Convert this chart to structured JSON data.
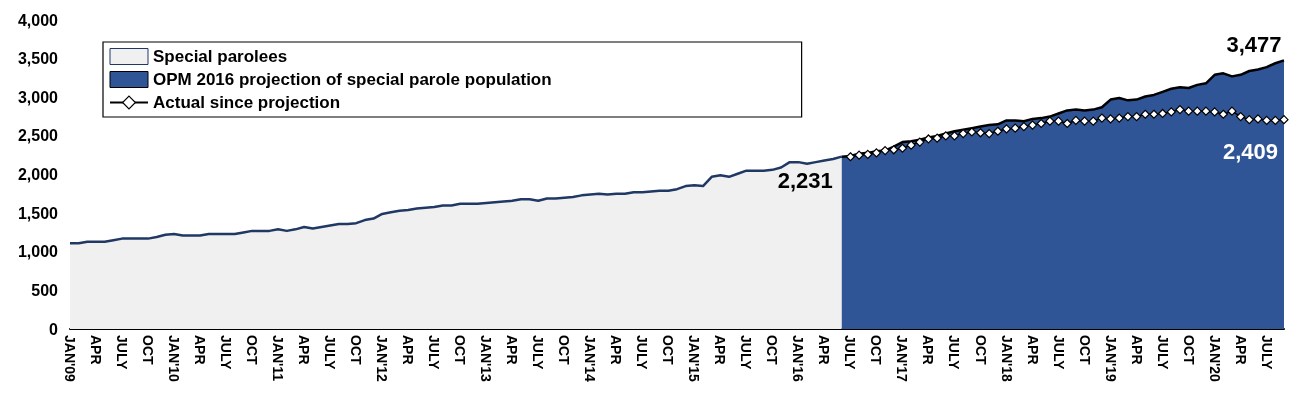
{
  "chart_data": {
    "type": "area",
    "categories": [
      "JAN'09",
      null,
      null,
      "APR",
      null,
      null,
      "JULY",
      null,
      null,
      "OCT",
      null,
      null,
      "JAN'10",
      null,
      null,
      "APR",
      null,
      null,
      "JULY",
      null,
      null,
      "OCT",
      null,
      null,
      "JAN'11",
      null,
      null,
      "APR",
      null,
      null,
      "JULY",
      null,
      null,
      "OCT",
      null,
      null,
      "JAN'12",
      null,
      null,
      "APR",
      null,
      null,
      "JULY",
      null,
      null,
      "OCT",
      null,
      null,
      "JAN'13",
      null,
      null,
      "APR",
      null,
      null,
      "JULY",
      null,
      null,
      "OCT",
      null,
      null,
      "JAN'14",
      null,
      null,
      "APR",
      null,
      null,
      "JULY",
      null,
      null,
      "OCT",
      null,
      null,
      "JAN'15",
      null,
      null,
      "APR",
      null,
      null,
      "JULY",
      null,
      null,
      "OCT",
      null,
      null,
      "JAN'16",
      null,
      null,
      "APR",
      null,
      null,
      "JULY",
      null,
      null,
      "OCT",
      null,
      null,
      "JAN'17",
      null,
      null,
      "APR",
      null,
      null,
      "JULY",
      null,
      null,
      "OCT",
      null,
      null,
      "JAN'18",
      null,
      null,
      "APR",
      null,
      null,
      "JULY",
      null,
      null,
      "OCT",
      null,
      null,
      "JAN'19",
      null,
      null,
      "APR",
      null,
      null,
      "JULY",
      null,
      null,
      "OCT",
      null,
      null,
      "JAN'20",
      null,
      null,
      "APR",
      null,
      null,
      "JULY",
      null,
      null
    ],
    "series": [
      {
        "name": "Special parolees",
        "type": "area",
        "color": "#f0f0f0",
        "values": [
          1110,
          1110,
          1130,
          1130,
          1130,
          1150,
          1170,
          1170,
          1170,
          1170,
          1190,
          1220,
          1230,
          1210,
          1210,
          1210,
          1230,
          1230,
          1230,
          1230,
          1250,
          1270,
          1270,
          1270,
          1290,
          1270,
          1290,
          1320,
          1300,
          1320,
          1340,
          1360,
          1360,
          1370,
          1410,
          1430,
          1490,
          1510,
          1530,
          1540,
          1560,
          1570,
          1580,
          1600,
          1600,
          1620,
          1620,
          1620,
          1630,
          1640,
          1650,
          1660,
          1680,
          1680,
          1660,
          1690,
          1690,
          1700,
          1710,
          1730,
          1740,
          1750,
          1740,
          1750,
          1750,
          1770,
          1770,
          1780,
          1790,
          1790,
          1810,
          1850,
          1860,
          1850,
          1970,
          1990,
          1970,
          2010,
          2050,
          2050,
          2050,
          2060,
          2090,
          2160,
          2160,
          2140,
          2160,
          2180,
          2200,
          2231,
          null,
          null,
          null,
          null,
          null,
          null,
          null,
          null,
          null,
          null,
          null,
          null,
          null,
          null,
          null,
          null,
          null,
          null,
          null,
          null,
          null,
          null,
          null,
          null,
          null,
          null,
          null,
          null,
          null,
          null,
          null,
          null,
          null,
          null,
          null,
          null,
          null,
          null,
          null,
          null,
          null,
          null,
          null,
          null,
          null,
          null,
          null,
          null,
          null,
          null,
          null
        ],
        "value_labels": [
          null,
          null,
          null,
          null,
          null,
          null,
          null,
          null,
          null,
          null,
          null,
          null,
          null,
          null,
          null,
          null,
          null,
          null,
          null,
          null,
          null,
          null,
          null,
          null,
          null,
          null,
          null,
          null,
          null,
          null,
          null,
          null,
          null,
          null,
          null,
          null,
          null,
          null,
          null,
          null,
          null,
          null,
          null,
          null,
          null,
          null,
          null,
          null,
          null,
          null,
          null,
          null,
          null,
          null,
          null,
          null,
          null,
          null,
          null,
          null,
          null,
          null,
          null,
          null,
          null,
          null,
          null,
          null,
          null,
          null,
          null,
          null,
          null,
          null,
          null,
          null,
          null,
          null,
          null,
          null,
          null,
          null,
          null,
          null,
          null,
          null,
          null,
          null,
          null,
          "2,231",
          null,
          null,
          null,
          null,
          null,
          null,
          null,
          null,
          null,
          null,
          null,
          null,
          null,
          null,
          null,
          null,
          null,
          null,
          null,
          null,
          null,
          null,
          null,
          null,
          null,
          null,
          null,
          null,
          null,
          null,
          null,
          null,
          null,
          null,
          null,
          null,
          null,
          null,
          null,
          null,
          null,
          null,
          null,
          null,
          null,
          null,
          null,
          null,
          null,
          null,
          null
        ]
      },
      {
        "name": "OPM 2016 projection of special parole population",
        "type": "area",
        "color": "#2f5597",
        "values": [
          null,
          null,
          null,
          null,
          null,
          null,
          null,
          null,
          null,
          null,
          null,
          null,
          null,
          null,
          null,
          null,
          null,
          null,
          null,
          null,
          null,
          null,
          null,
          null,
          null,
          null,
          null,
          null,
          null,
          null,
          null,
          null,
          null,
          null,
          null,
          null,
          null,
          null,
          null,
          null,
          null,
          null,
          null,
          null,
          null,
          null,
          null,
          null,
          null,
          null,
          null,
          null,
          null,
          null,
          null,
          null,
          null,
          null,
          null,
          null,
          null,
          null,
          null,
          null,
          null,
          null,
          null,
          null,
          null,
          null,
          null,
          null,
          null,
          null,
          null,
          null,
          null,
          null,
          null,
          null,
          null,
          null,
          null,
          null,
          null,
          null,
          null,
          null,
          null,
          2231,
          2240,
          2270,
          2280,
          2300,
          2310,
          2360,
          2420,
          2430,
          2450,
          2480,
          2500,
          2530,
          2560,
          2580,
          2600,
          2620,
          2640,
          2650,
          2700,
          2700,
          2690,
          2720,
          2730,
          2750,
          2790,
          2830,
          2840,
          2830,
          2840,
          2870,
          2970,
          2990,
          2960,
          2970,
          3010,
          3030,
          3070,
          3110,
          3130,
          3120,
          3160,
          3180,
          3290,
          3310,
          3270,
          3290,
          3340,
          3360,
          3390,
          3440,
          3477
        ],
        "value_labels": [
          null,
          null,
          null,
          null,
          null,
          null,
          null,
          null,
          null,
          null,
          null,
          null,
          null,
          null,
          null,
          null,
          null,
          null,
          null,
          null,
          null,
          null,
          null,
          null,
          null,
          null,
          null,
          null,
          null,
          null,
          null,
          null,
          null,
          null,
          null,
          null,
          null,
          null,
          null,
          null,
          null,
          null,
          null,
          null,
          null,
          null,
          null,
          null,
          null,
          null,
          null,
          null,
          null,
          null,
          null,
          null,
          null,
          null,
          null,
          null,
          null,
          null,
          null,
          null,
          null,
          null,
          null,
          null,
          null,
          null,
          null,
          null,
          null,
          null,
          null,
          null,
          null,
          null,
          null,
          null,
          null,
          null,
          null,
          null,
          null,
          null,
          null,
          null,
          null,
          null,
          null,
          null,
          null,
          null,
          null,
          null,
          null,
          null,
          null,
          null,
          null,
          null,
          null,
          null,
          null,
          null,
          null,
          null,
          null,
          null,
          null,
          null,
          null,
          null,
          null,
          null,
          null,
          null,
          null,
          null,
          null,
          null,
          null,
          null,
          null,
          null,
          null,
          null,
          null,
          null,
          null,
          null,
          null,
          null,
          null,
          null,
          null,
          null,
          null,
          null,
          "3,477"
        ]
      },
      {
        "name": "Actual since projection",
        "type": "line",
        "color": "#000000",
        "marker": "diamond",
        "values": [
          null,
          null,
          null,
          null,
          null,
          null,
          null,
          null,
          null,
          null,
          null,
          null,
          null,
          null,
          null,
          null,
          null,
          null,
          null,
          null,
          null,
          null,
          null,
          null,
          null,
          null,
          null,
          null,
          null,
          null,
          null,
          null,
          null,
          null,
          null,
          null,
          null,
          null,
          null,
          null,
          null,
          null,
          null,
          null,
          null,
          null,
          null,
          null,
          null,
          null,
          null,
          null,
          null,
          null,
          null,
          null,
          null,
          null,
          null,
          null,
          null,
          null,
          null,
          null,
          null,
          null,
          null,
          null,
          null,
          null,
          null,
          null,
          null,
          null,
          null,
          null,
          null,
          null,
          null,
          null,
          null,
          null,
          null,
          null,
          null,
          null,
          null,
          null,
          null,
          null,
          2230,
          2250,
          2260,
          2280,
          2310,
          2320,
          2340,
          2380,
          2420,
          2460,
          2470,
          2500,
          2500,
          2530,
          2550,
          2540,
          2530,
          2560,
          2590,
          2600,
          2620,
          2640,
          2660,
          2690,
          2690,
          2660,
          2700,
          2690,
          2690,
          2730,
          2720,
          2730,
          2750,
          2750,
          2780,
          2780,
          2790,
          2810,
          2840,
          2820,
          2820,
          2820,
          2810,
          2780,
          2820,
          2750,
          2710,
          2720,
          2700,
          2700,
          2710
        ]
      }
    ],
    "annotations": [
      "2,409"
    ],
    "ylim": [
      0,
      4000
    ],
    "yticks": [
      0,
      500,
      {
        "value": 1000,
        "label": "1,000"
      },
      {
        "value": 1500,
        "label": "1,500"
      },
      {
        "value": 2000,
        "label": "2,000"
      },
      {
        "value": 2500,
        "label": "2,500"
      },
      {
        "value": 3000,
        "label": "3,000"
      },
      {
        "value": 3500,
        "label": "3,500"
      },
      {
        "value": 4000,
        "label": "4,000"
      }
    ],
    "grid": false,
    "legend": "top left"
  }
}
